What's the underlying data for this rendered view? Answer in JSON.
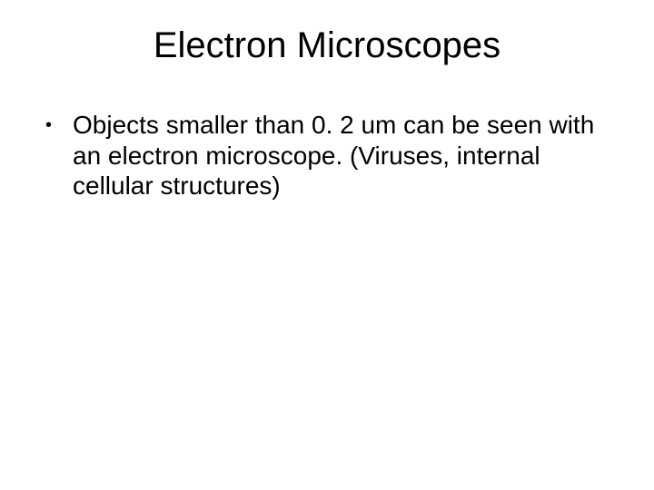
{
  "slide": {
    "title": "Electron Microscopes",
    "bullets": [
      {
        "text": "Objects smaller than 0. 2 um can be seen with an electron microscope.  (Viruses, internal cellular structures)"
      }
    ],
    "styling": {
      "background_color": "#ffffff",
      "text_color": "#000000",
      "title_fontsize": 40,
      "title_fontweight": "normal",
      "body_fontsize": 28,
      "font_family": "Arial",
      "bullet_marker": "•",
      "slide_width": 720,
      "slide_height": 540
    }
  }
}
